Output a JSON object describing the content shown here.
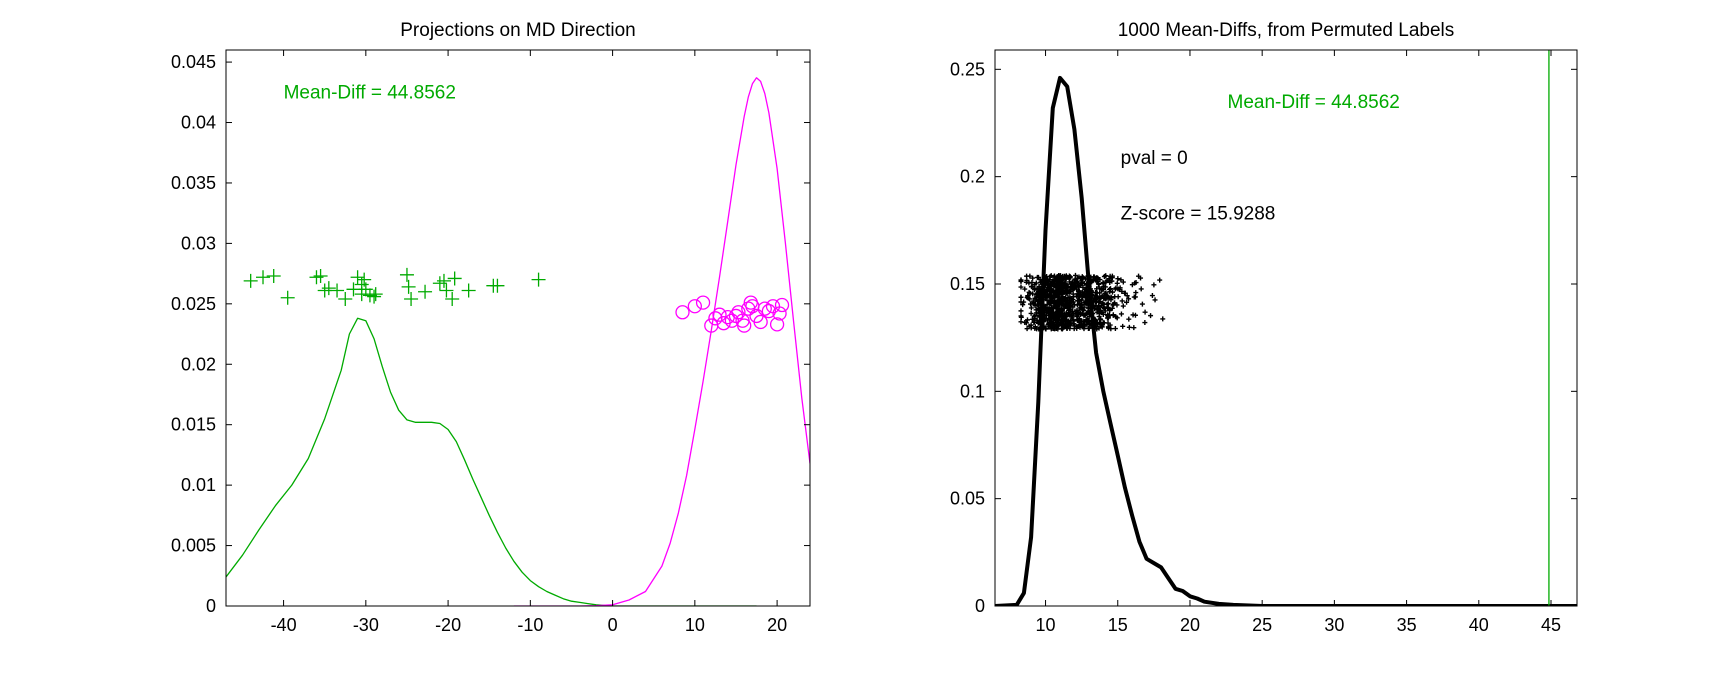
{
  "chart_data": [
    {
      "type": "line",
      "title": "Projections on MD Direction",
      "xlabel": "",
      "ylabel": "",
      "xlim": [
        -47,
        24
      ],
      "ylim": [
        0,
        0.046
      ],
      "xticks": [
        -40,
        -30,
        -20,
        -10,
        0,
        10,
        20
      ],
      "yticks": [
        0,
        0.005,
        0.01,
        0.015,
        0.02,
        0.025,
        0.03,
        0.035,
        0.04,
        0.045
      ],
      "ytick_labels": [
        "0",
        "0.005",
        "0.01",
        "0.015",
        "0.02",
        "0.025",
        "0.03",
        "0.035",
        "0.04",
        "0.045"
      ],
      "grid": false,
      "series": [
        {
          "color": "#00aa00",
          "kind": "line",
          "x": [
            -47,
            -45,
            -43,
            -41,
            -39,
            -37,
            -35,
            -33,
            -32,
            -31,
            -30,
            -29,
            -28,
            -27,
            -26,
            -25,
            -24,
            -23,
            -22,
            -21,
            -20,
            -19,
            -18,
            -17,
            -16,
            -15,
            -14,
            -13,
            -12,
            -11,
            -10,
            -9,
            -8,
            -7,
            -6,
            -5,
            -4,
            -3,
            -2,
            -1,
            0,
            2,
            5,
            10,
            15,
            17.5
          ],
          "y": [
            0.0024,
            0.0042,
            0.0063,
            0.0083,
            0.01,
            0.0122,
            0.0155,
            0.0195,
            0.0225,
            0.0238,
            0.0236,
            0.0221,
            0.0198,
            0.0177,
            0.0162,
            0.0154,
            0.0152,
            0.0152,
            0.0152,
            0.0151,
            0.0146,
            0.0136,
            0.0121,
            0.0105,
            0.009,
            0.0075,
            0.0061,
            0.0048,
            0.0037,
            0.0028,
            0.0021,
            0.0016,
            0.0012,
            0.0009,
            0.0006,
            0.0004,
            0.0003,
            0.0002,
            0.0001,
            5e-05,
            0.0,
            0.0,
            0.0,
            0.0,
            0.0,
            0.0
          ]
        },
        {
          "color": "#ff00ff",
          "kind": "line",
          "x": [
            -12,
            -4,
            -2,
            0,
            2,
            4,
            6,
            7,
            8,
            9,
            10,
            11,
            12,
            13,
            14,
            15,
            16,
            16.5,
            17,
            17.5,
            18,
            18.5,
            19,
            20,
            21,
            22,
            23,
            24
          ],
          "y": [
            0.0,
            0.0,
            3e-05,
            0.0001,
            0.0005,
            0.0012,
            0.0033,
            0.0052,
            0.0077,
            0.0108,
            0.0146,
            0.0186,
            0.0228,
            0.0272,
            0.0318,
            0.0365,
            0.0405,
            0.0421,
            0.0432,
            0.0437,
            0.0434,
            0.0424,
            0.0408,
            0.0362,
            0.0301,
            0.0236,
            0.0172,
            0.0118
          ]
        },
        {
          "color": "#00aa00",
          "kind": "scatter",
          "marker": "+",
          "x": [
            -44,
            -42.5,
            -41.2,
            -39.5,
            -36,
            -35.5,
            -35,
            -34.5,
            -33.5,
            -32.5,
            -31.5,
            -31,
            -30.5,
            -30.5,
            -30.2,
            -30,
            -29.5,
            -29,
            -28.8,
            -25,
            -24.5,
            -24.8,
            -22.8,
            -21,
            -20.5,
            -20.2,
            -19.5,
            -19.2,
            -17.5,
            -14.5,
            -14,
            -9
          ],
          "y": [
            0.0269,
            0.0272,
            0.0273,
            0.0255,
            0.0272,
            0.0273,
            0.0261,
            0.0263,
            0.0261,
            0.0254,
            0.0262,
            0.0272,
            0.0266,
            0.0258,
            0.027,
            0.0262,
            0.0257,
            0.0256,
            0.0258,
            0.0274,
            0.0254,
            0.0264,
            0.026,
            0.0267,
            0.0269,
            0.0261,
            0.0254,
            0.0271,
            0.0261,
            0.0265,
            0.0265,
            0.027
          ]
        },
        {
          "color": "#ff00ff",
          "kind": "scatter",
          "marker": "o",
          "x": [
            8.5,
            10,
            11,
            12,
            12.5,
            13,
            13.5,
            14,
            14.5,
            15,
            15.3,
            15.8,
            16,
            16.5,
            16.8,
            17,
            17.5,
            18,
            18.5,
            19,
            19.5,
            20,
            20.3,
            20.6
          ],
          "y": [
            0.0243,
            0.0248,
            0.0251,
            0.0232,
            0.0238,
            0.0241,
            0.0234,
            0.0239,
            0.0236,
            0.024,
            0.0243,
            0.0236,
            0.0232,
            0.0246,
            0.0251,
            0.0248,
            0.024,
            0.0235,
            0.0246,
            0.0244,
            0.0248,
            0.0233,
            0.0242,
            0.0249
          ]
        }
      ],
      "annotations": [
        {
          "text": "Mean-Diff = 44.8562",
          "x": -40,
          "y": 0.042,
          "color": "#00aa00"
        }
      ]
    },
    {
      "type": "line",
      "title": "1000 Mean-Diffs, from Permuted Labels",
      "xlabel": "",
      "ylabel": "",
      "xlim": [
        6.5,
        46.8
      ],
      "ylim": [
        0,
        0.259
      ],
      "xticks": [
        10,
        15,
        20,
        25,
        30,
        35,
        40,
        45
      ],
      "yticks": [
        0,
        0.05,
        0.1,
        0.15,
        0.2,
        0.25
      ],
      "ytick_labels": [
        "0",
        "0.05",
        "0.1",
        "0.15",
        "0.2",
        "0.25"
      ],
      "grid": false,
      "series": [
        {
          "color": "#000000",
          "kind": "line",
          "x": [
            6.5,
            8,
            8.5,
            9,
            9.5,
            10,
            10.5,
            11,
            11.5,
            12,
            12.5,
            13,
            13.5,
            14,
            14.5,
            15,
            15.5,
            16,
            16.5,
            17,
            17.5,
            18,
            18.5,
            19,
            19.5,
            20,
            20.5,
            21,
            22,
            23,
            25,
            30,
            35,
            40,
            46.8
          ],
          "y": [
            0.0,
            0.0005,
            0.006,
            0.032,
            0.095,
            0.175,
            0.232,
            0.246,
            0.242,
            0.222,
            0.19,
            0.15,
            0.118,
            0.1,
            0.085,
            0.07,
            0.055,
            0.042,
            0.03,
            0.022,
            0.02,
            0.018,
            0.013,
            0.008,
            0.007,
            0.0045,
            0.0035,
            0.002,
            0.001,
            0.0005,
            0.0,
            0.0,
            0.0,
            0.0,
            0.0
          ]
        },
        {
          "color": "#000000",
          "kind": "scatter",
          "marker": ".",
          "count": 1000,
          "x_range": [
            8.3,
            22.6
          ],
          "y_range": [
            0.129,
            0.154
          ]
        },
        {
          "color": "#00aa00",
          "kind": "vline",
          "x": 44.8562
        }
      ],
      "annotations": [
        {
          "text": "Mean-Diff = 44.8562",
          "x": 22.6,
          "y": 0.232,
          "color": "#00aa00"
        },
        {
          "text": "pval = 0",
          "x": 15.2,
          "y": 0.206,
          "color": "#000000"
        },
        {
          "text": "Z-score = 15.9288",
          "x": 15.2,
          "y": 0.18,
          "color": "#000000"
        }
      ]
    }
  ]
}
